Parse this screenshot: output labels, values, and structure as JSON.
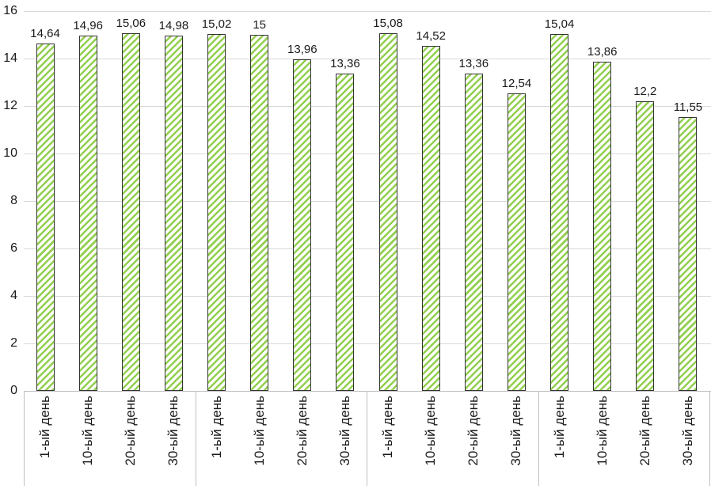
{
  "chart_data": {
    "type": "bar",
    "title": "",
    "xlabel": "",
    "ylabel": "",
    "ylim": [
      0,
      16
    ],
    "ytick_step": 2,
    "y_ticks": [
      "0",
      "2",
      "4",
      "6",
      "8",
      "10",
      "12",
      "14",
      "16"
    ],
    "grid": true,
    "legend_position": "none",
    "group_count": 4,
    "group_size": 4,
    "categories": [
      "1-ый день",
      "10-ый день",
      "20-ый день",
      "30-ый день",
      "1-ый день",
      "10-ый день",
      "20-ый день",
      "30-ый день",
      "1-ый день",
      "10-ый день",
      "20-ый день",
      "30-ый день",
      "1-ый день",
      "10-ый день",
      "20-ый день",
      "30-ый день"
    ],
    "values": [
      14.64,
      14.96,
      15.06,
      14.98,
      15.02,
      15,
      13.96,
      13.36,
      15.08,
      14.52,
      13.36,
      12.54,
      15.04,
      13.86,
      12.2,
      11.55
    ],
    "labels": [
      "14,64",
      "14,96",
      "15,06",
      "14,98",
      "15,02",
      "15",
      "13,96",
      "13,36",
      "15,08",
      "14,52",
      "13,36",
      "12,54",
      "15,04",
      "13,86",
      "12,2",
      "11,55"
    ],
    "bar_style": {
      "fill": "#ffffff",
      "hatch": "diagonal-up",
      "hatch_color": "#92cf4e",
      "border_color": "#333333"
    },
    "axis_style": {
      "gridline_color": "#d9d9d9",
      "axis_color": "#bfbfbf",
      "text_color": "#1a1a1a"
    }
  }
}
